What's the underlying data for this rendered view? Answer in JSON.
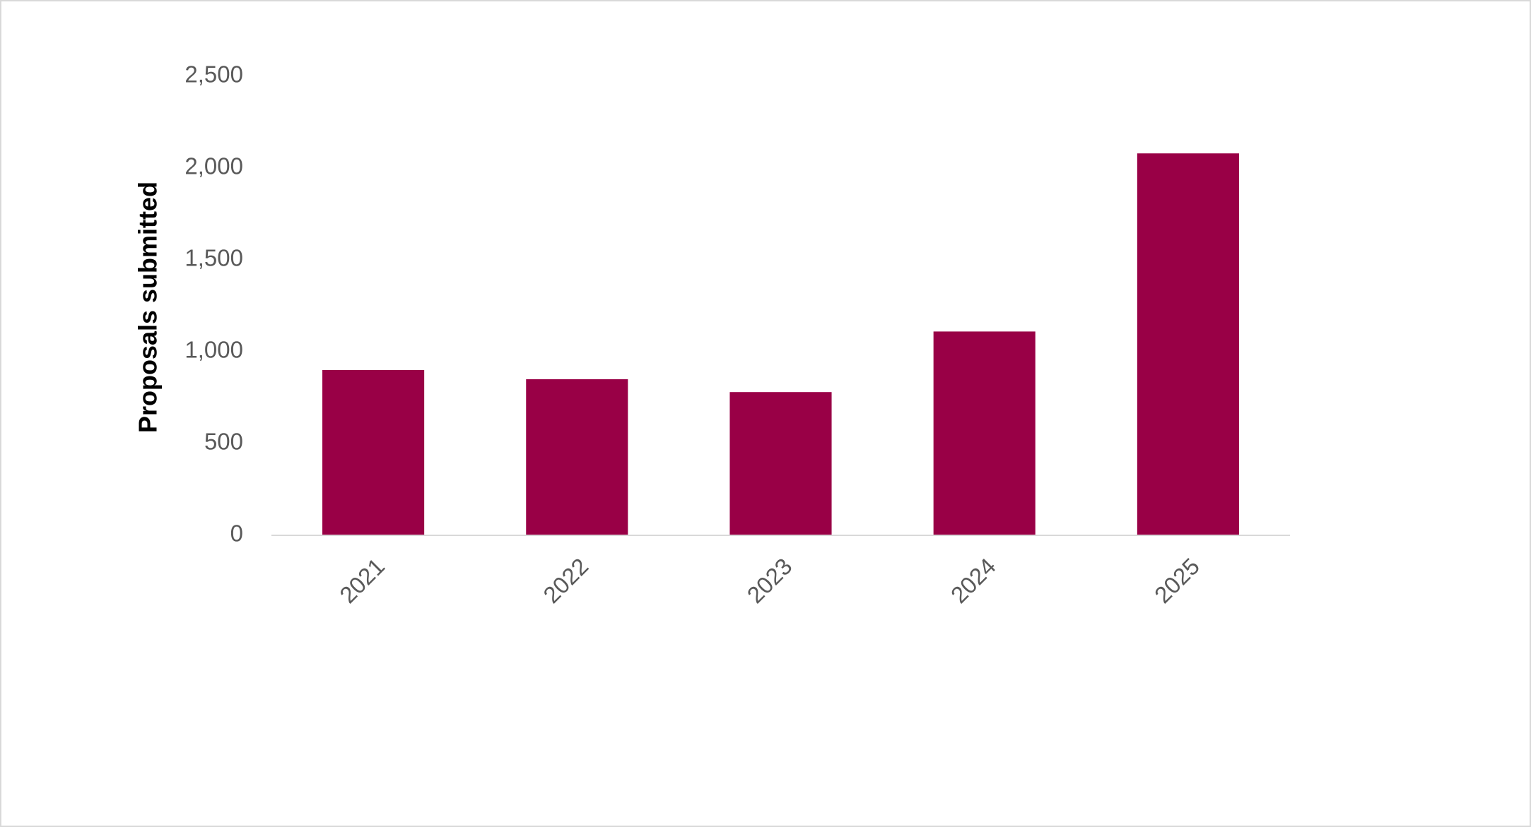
{
  "chart_data": {
    "type": "bar",
    "y_label": "Proposals submitted",
    "categories": [
      "2021",
      "2022",
      "2023",
      "2024",
      "2025"
    ],
    "values": [
      900,
      850,
      780,
      1110,
      2080
    ],
    "color": "#990046",
    "ylim": [
      0,
      2500
    ],
    "yticks": [
      0,
      500,
      {
        "value": 1000,
        "label": "1,000"
      },
      {
        "value": 1500,
        "label": "1,500"
      },
      {
        "value": 2000,
        "label": "2,000"
      },
      {
        "value": 2500,
        "label": "2,500"
      }
    ],
    "grid": false
  }
}
